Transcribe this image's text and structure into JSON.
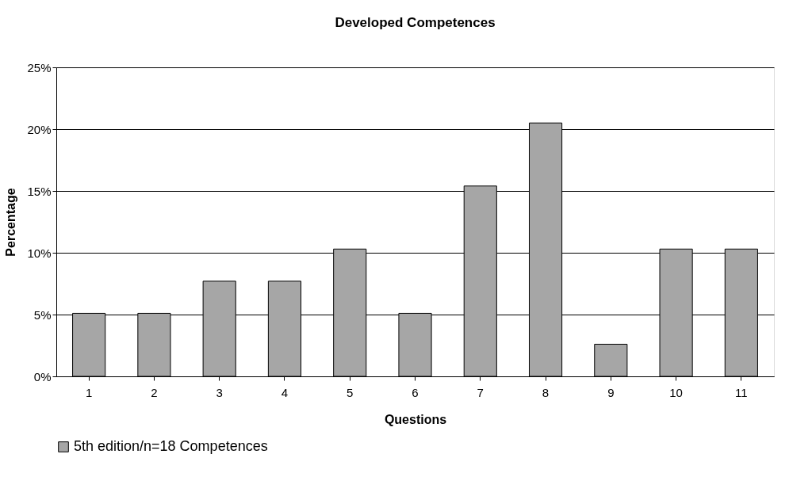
{
  "chart_data": {
    "type": "bar",
    "title": "Developed Competences",
    "xlabel": "Questions",
    "ylabel": "Percentage",
    "categories": [
      "1",
      "2",
      "3",
      "4",
      "5",
      "6",
      "7",
      "8",
      "9",
      "10",
      "11"
    ],
    "series": [
      {
        "name": "5th edition/n=18 Competences",
        "color": "#a6a6a6",
        "values": [
          5.1,
          5.1,
          7.7,
          7.7,
          10.3,
          5.1,
          15.4,
          20.5,
          2.6,
          10.3,
          10.3
        ]
      }
    ],
    "ylim": [
      0,
      25
    ],
    "yticks": [
      {
        "value": 0,
        "label": "0%"
      },
      {
        "value": 5,
        "label": "5%"
      },
      {
        "value": 10,
        "label": "10%"
      },
      {
        "value": 15,
        "label": "15%"
      },
      {
        "value": 20,
        "label": "20%"
      },
      {
        "value": 25,
        "label": "25%"
      }
    ],
    "grid": "y",
    "legend": "bottom"
  }
}
